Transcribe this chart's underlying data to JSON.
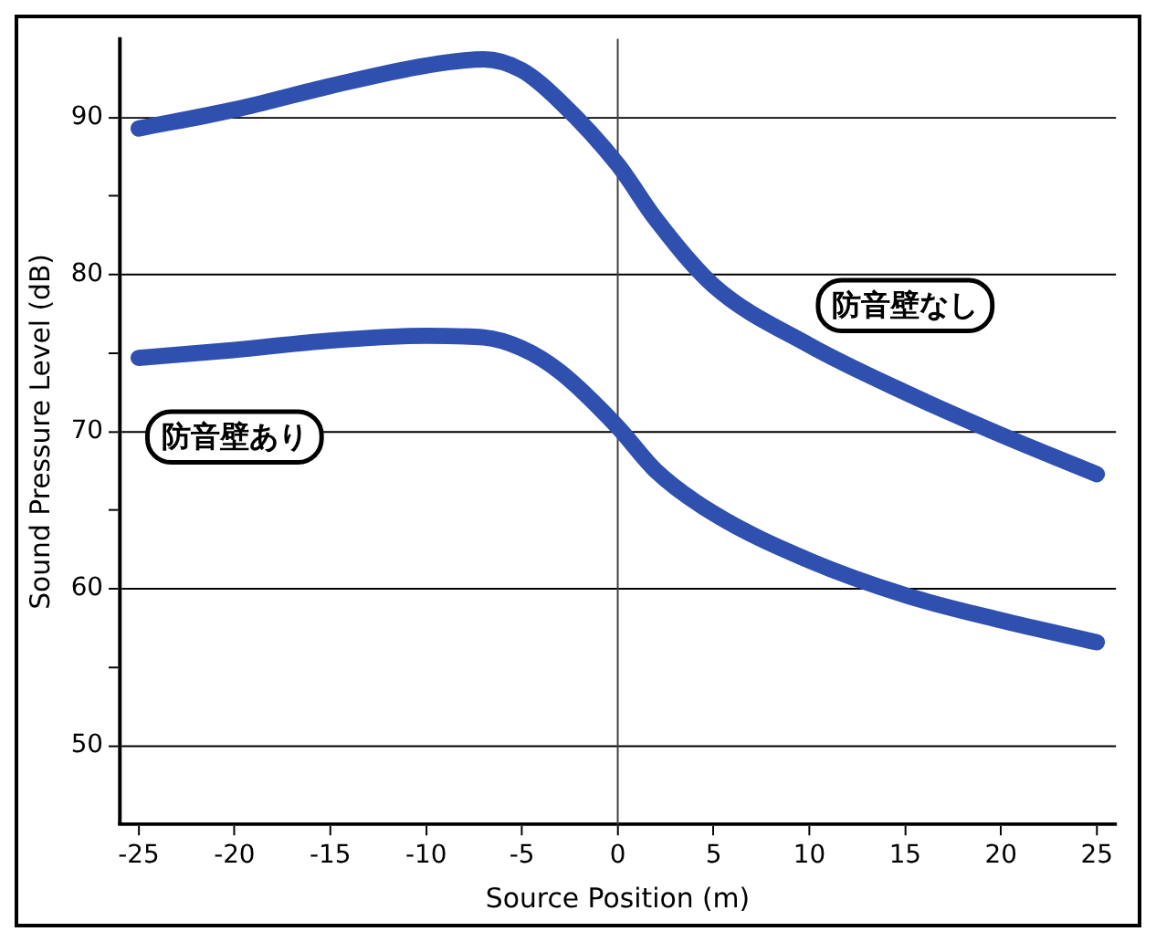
{
  "chart_data": {
    "type": "line",
    "xlabel": "Source Position (m)",
    "ylabel": "Sound Pressure Level (dB)",
    "xlim": [
      -26,
      26
    ],
    "xticks": [
      -25,
      -20,
      -15,
      -10,
      -5,
      0,
      5,
      10,
      15,
      20,
      25
    ],
    "ylim": [
      45,
      95
    ],
    "yticks": [
      50,
      {
        "value": 55,
        "label": null
      },
      60,
      {
        "value": 65,
        "label": null
      },
      70,
      {
        "value": 75,
        "label": null
      },
      80,
      {
        "value": 85,
        "label": null
      },
      90
    ],
    "grid": "y",
    "marker": "none",
    "line_style": "solid",
    "ref_lines": [
      {
        "axis": "x",
        "value": 0,
        "color": "#404040"
      }
    ],
    "series": [
      {
        "name": "防音壁なし",
        "color": "#3050b0",
        "x": [
          -25,
          -20,
          -15,
          -10,
          -7,
          -5,
          -3,
          0,
          2,
          5,
          10,
          15,
          20,
          25
        ],
        "values": [
          89.3,
          90.5,
          92,
          93.3,
          93.7,
          93,
          91,
          87,
          83.5,
          79.3,
          75.5,
          72.5,
          69.8,
          67.3
        ]
      },
      {
        "name": "防音壁あり",
        "color": "#3050b0",
        "x": [
          -25,
          -20,
          -15,
          -10,
          -7,
          -5,
          -3,
          0,
          2,
          5,
          10,
          15,
          20,
          25
        ],
        "values": [
          74.7,
          75.2,
          75.8,
          76.1,
          76,
          75.3,
          73.8,
          70.3,
          67.5,
          64.8,
          61.8,
          59.6,
          58,
          56.6
        ]
      }
    ]
  }
}
